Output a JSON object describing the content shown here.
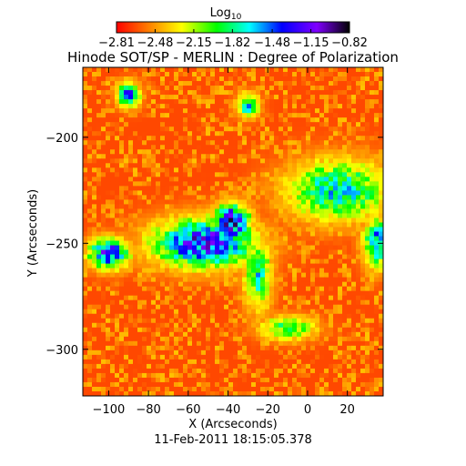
{
  "chart_data": {
    "type": "heatmap",
    "title": "Hinode SOT/SP - MERLIN : Degree of Polarization",
    "xlabel": "X (Arcseconds)",
    "ylabel": "Y (Arcseconds)",
    "timestamp": "11-Feb-2011 18:15:05.378",
    "xlim": [
      -113,
      38
    ],
    "ylim": [
      -322,
      -167
    ],
    "x_ticks": [
      -100,
      -80,
      -60,
      -40,
      -20,
      0,
      20
    ],
    "y_ticks": [
      -200,
      -250,
      -300
    ],
    "x_tick_labels": [
      "-100",
      "-80",
      "-60",
      "-40",
      "-20",
      "0",
      "20"
    ],
    "y_tick_labels": [
      "-200",
      "-250",
      "-300"
    ],
    "colorbar": {
      "label": "Log",
      "label_subscript": "10",
      "range": [
        -2.81,
        -0.82
      ],
      "ticks": [
        -2.81,
        -2.48,
        -2.15,
        -1.82,
        -1.48,
        -1.15,
        -0.82
      ],
      "tick_labels": [
        "-2.81",
        "-2.48",
        "-2.15",
        "-1.82",
        "-1.48",
        "-1.15",
        "-0.82"
      ],
      "colormap": [
        "#ff0000",
        "#ff8000",
        "#ffff00",
        "#00ff00",
        "#00ffff",
        "#0000ff",
        "#8000ff",
        "#000000"
      ]
    },
    "field": {
      "background_value": -2.65,
      "enhanced_regions": [
        {
          "x": -52,
          "y": -250,
          "sx": 18,
          "sy": 8,
          "peak": -1.1
        },
        {
          "x": -38,
          "y": -240,
          "sx": 6,
          "sy": 6,
          "peak": -0.9
        },
        {
          "x": -100,
          "y": -255,
          "sx": 7,
          "sy": 5,
          "peak": -1.15
        },
        {
          "x": -25,
          "y": -265,
          "sx": 5,
          "sy": 12,
          "peak": -1.7
        },
        {
          "x": 15,
          "y": -225,
          "sx": 18,
          "sy": 10,
          "peak": -1.6
        },
        {
          "x": 35,
          "y": -250,
          "sx": 5,
          "sy": 8,
          "peak": -1.4
        },
        {
          "x": -10,
          "y": -290,
          "sx": 10,
          "sy": 4,
          "peak": -1.8
        },
        {
          "x": -90,
          "y": -180,
          "sx": 4,
          "sy": 4,
          "peak": -1.4
        },
        {
          "x": -30,
          "y": -185,
          "sx": 4,
          "sy": 4,
          "peak": -1.6
        }
      ]
    }
  }
}
